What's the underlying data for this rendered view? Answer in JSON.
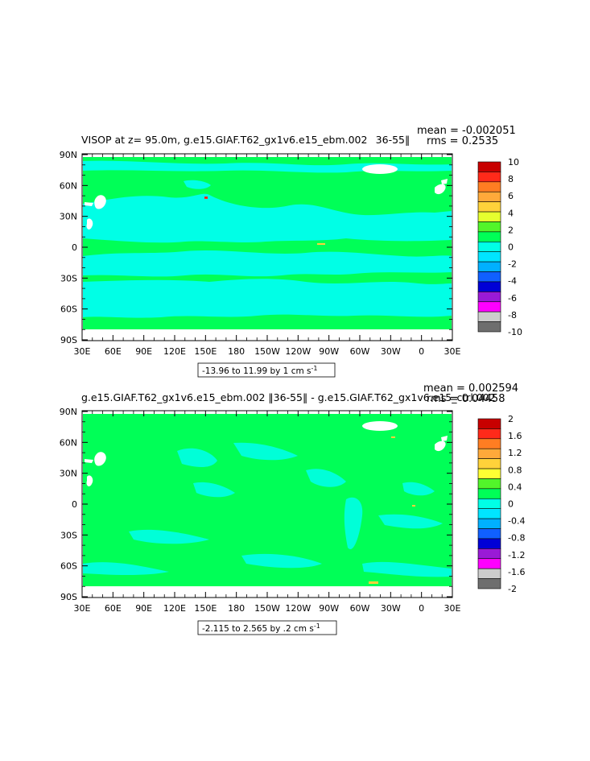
{
  "colors": {
    "ocean_green": "#00ff57",
    "ocean_cyan": "#00ffe6",
    "land": "#ffffff",
    "background": "#ffffff"
  },
  "panels": [
    {
      "title": "VISOP at z=   95.0m, g.e15.GIAF.T62_gx1v6.e15_ebm.002  36-55‖",
      "mean_text": "mean = -0.002051",
      "rms_text": "rms = 0.2535",
      "range_text": "-13.96 to 11.99 by 1 cm s",
      "range_sup": "-1",
      "lat_labels": [
        "90N",
        "60N",
        "30N",
        "0",
        "30S",
        "60S",
        "90S"
      ],
      "lon_labels": [
        "30E",
        "60E",
        "90E",
        "120E",
        "150E",
        "180",
        "150W",
        "120W",
        "90W",
        "60W",
        "30W",
        "0",
        "30E"
      ],
      "colorbar_labels": [
        "10",
        "8",
        "6",
        "4",
        "2",
        "0",
        "-2",
        "-4",
        "-6",
        "-8",
        "-10"
      ],
      "colorbar_colors": [
        "#c80000",
        "#ff2a1a",
        "#ff7d22",
        "#ffa93a",
        "#ffd23a",
        "#e6ff2e",
        "#52f52a",
        "#00ff57",
        "#00ffe6",
        "#00e5ff",
        "#00b0ff",
        "#1060ff",
        "#0000d6",
        "#9a1ad6",
        "#ff00ff",
        "#cccccc",
        "#6e6e6e"
      ],
      "field_colors": [
        "#00ff57",
        "#00ffe6"
      ]
    },
    {
      "title": "g.e15.GIAF.T62_gx1v6.e15_ebm.002 ‖36-55‖ - g.e15.GIAF.T62_gx1v6.e15_ctrl.002",
      "mean_text": "mean = 0.002594",
      "rms_text": "rms = 0.04458",
      "range_text": "-2.115 to 2.565 by .2 cm s",
      "range_sup": "-1",
      "lat_labels": [
        "90N",
        "60N",
        "30N",
        "0",
        "30S",
        "60S",
        "90S"
      ],
      "lon_labels": [
        "30E",
        "60E",
        "90E",
        "120E",
        "150E",
        "180",
        "150W",
        "120W",
        "90W",
        "60W",
        "30W",
        "0",
        "30E"
      ],
      "colorbar_labels": [
        "2",
        "1.6",
        "1.2",
        "0.8",
        "0.4",
        "0",
        "-0.4",
        "-0.8",
        "-1.2",
        "-1.6",
        "-2"
      ],
      "colorbar_colors": [
        "#c80000",
        "#ff2a1a",
        "#ff7d22",
        "#ffa93a",
        "#ffd23a",
        "#ffff33",
        "#52f52a",
        "#00ff57",
        "#00ffe6",
        "#00e5ff",
        "#00b0ff",
        "#1060ff",
        "#0000d6",
        "#9a1ad6",
        "#ff00ff",
        "#cccccc",
        "#6e6e6e"
      ],
      "field_colors": [
        "#00ff57",
        "#00ffe6"
      ]
    }
  ]
}
